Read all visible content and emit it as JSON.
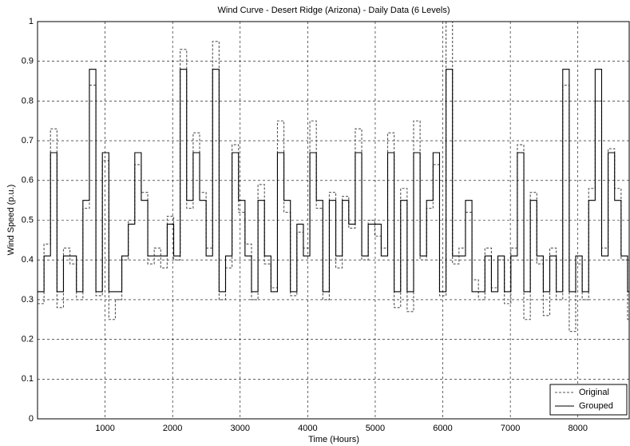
{
  "chart_data": {
    "type": "line",
    "drawstyle": "steps-post",
    "title": "Wind Curve - Desert Ridge (Arizona) - Daily Data (6 Levels)",
    "xlabel": "Time (Hours)",
    "ylabel": "Wind Speed (p.u.)",
    "x": [
      0,
      96,
      192,
      288,
      384,
      480,
      576,
      672,
      768,
      864,
      960,
      1056,
      1152,
      1248,
      1344,
      1440,
      1536,
      1632,
      1728,
      1824,
      1920,
      2016,
      2112,
      2208,
      2304,
      2400,
      2496,
      2592,
      2688,
      2784,
      2880,
      2976,
      3072,
      3168,
      3264,
      3360,
      3456,
      3552,
      3648,
      3744,
      3840,
      3936,
      4032,
      4128,
      4224,
      4320,
      4416,
      4512,
      4608,
      4704,
      4800,
      4896,
      4992,
      5088,
      5184,
      5280,
      5376,
      5472,
      5568,
      5664,
      5760,
      5856,
      5952,
      6048,
      6144,
      6240,
      6336,
      6432,
      6528,
      6624,
      6720,
      6816,
      6912,
      7008,
      7104,
      7200,
      7296,
      7392,
      7488,
      7584,
      7680,
      7776,
      7872,
      7968,
      8064,
      8160,
      8256,
      8352,
      8448,
      8544,
      8640,
      8736
    ],
    "series": [
      {
        "name": "Original",
        "color": "#555555",
        "dash": true,
        "values": [
          0.29,
          0.44,
          0.73,
          0.28,
          0.43,
          0.39,
          0.3,
          0.53,
          0.84,
          0.31,
          0.65,
          0.25,
          0.3,
          0.4,
          0.5,
          0.64,
          0.57,
          0.39,
          0.43,
          0.38,
          0.51,
          0.4,
          0.93,
          0.53,
          0.72,
          0.57,
          0.43,
          0.95,
          0.3,
          0.38,
          0.69,
          0.52,
          0.44,
          0.3,
          0.59,
          0.39,
          0.33,
          0.75,
          0.52,
          0.31,
          0.47,
          0.43,
          0.75,
          0.53,
          0.3,
          0.57,
          0.38,
          0.56,
          0.48,
          0.73,
          0.4,
          0.5,
          0.46,
          0.43,
          0.72,
          0.28,
          0.58,
          0.27,
          0.75,
          0.4,
          0.53,
          0.64,
          0.31,
          1.0,
          0.39,
          0.43,
          0.52,
          0.35,
          0.3,
          0.43,
          0.33,
          0.4,
          0.29,
          0.43,
          0.69,
          0.25,
          0.57,
          0.39,
          0.26,
          0.43,
          0.3,
          0.84,
          0.22,
          0.39,
          0.3,
          0.58,
          0.8,
          0.43,
          0.68,
          0.58,
          0.4,
          0.25
        ]
      },
      {
        "name": "Grouped",
        "color": "#000000",
        "dash": false,
        "values": [
          0.32,
          0.41,
          0.67,
          0.32,
          0.41,
          0.41,
          0.32,
          0.55,
          0.88,
          0.32,
          0.67,
          0.32,
          0.32,
          0.41,
          0.49,
          0.67,
          0.55,
          0.41,
          0.41,
          0.41,
          0.49,
          0.41,
          0.88,
          0.55,
          0.67,
          0.55,
          0.41,
          0.88,
          0.32,
          0.41,
          0.67,
          0.55,
          0.41,
          0.32,
          0.55,
          0.41,
          0.32,
          0.67,
          0.55,
          0.32,
          0.49,
          0.41,
          0.67,
          0.55,
          0.32,
          0.55,
          0.41,
          0.55,
          0.49,
          0.67,
          0.41,
          0.49,
          0.49,
          0.41,
          0.67,
          0.32,
          0.55,
          0.32,
          0.67,
          0.41,
          0.55,
          0.67,
          0.32,
          0.88,
          0.41,
          0.41,
          0.55,
          0.32,
          0.32,
          0.41,
          0.32,
          0.41,
          0.32,
          0.41,
          0.67,
          0.32,
          0.55,
          0.41,
          0.32,
          0.41,
          0.32,
          0.88,
          0.32,
          0.41,
          0.32,
          0.55,
          0.88,
          0.41,
          0.67,
          0.55,
          0.41,
          0.32
        ]
      }
    ],
    "xlim": [
      0,
      8760
    ],
    "xticks": [
      1000,
      2000,
      3000,
      4000,
      5000,
      6000,
      7000,
      8000
    ],
    "ylim": [
      0,
      1
    ],
    "yticks": [
      0,
      0.1,
      0.2,
      0.3,
      0.4,
      0.5,
      0.6,
      0.7,
      0.8,
      0.9,
      1
    ],
    "grid": true,
    "legend": "lower right"
  }
}
